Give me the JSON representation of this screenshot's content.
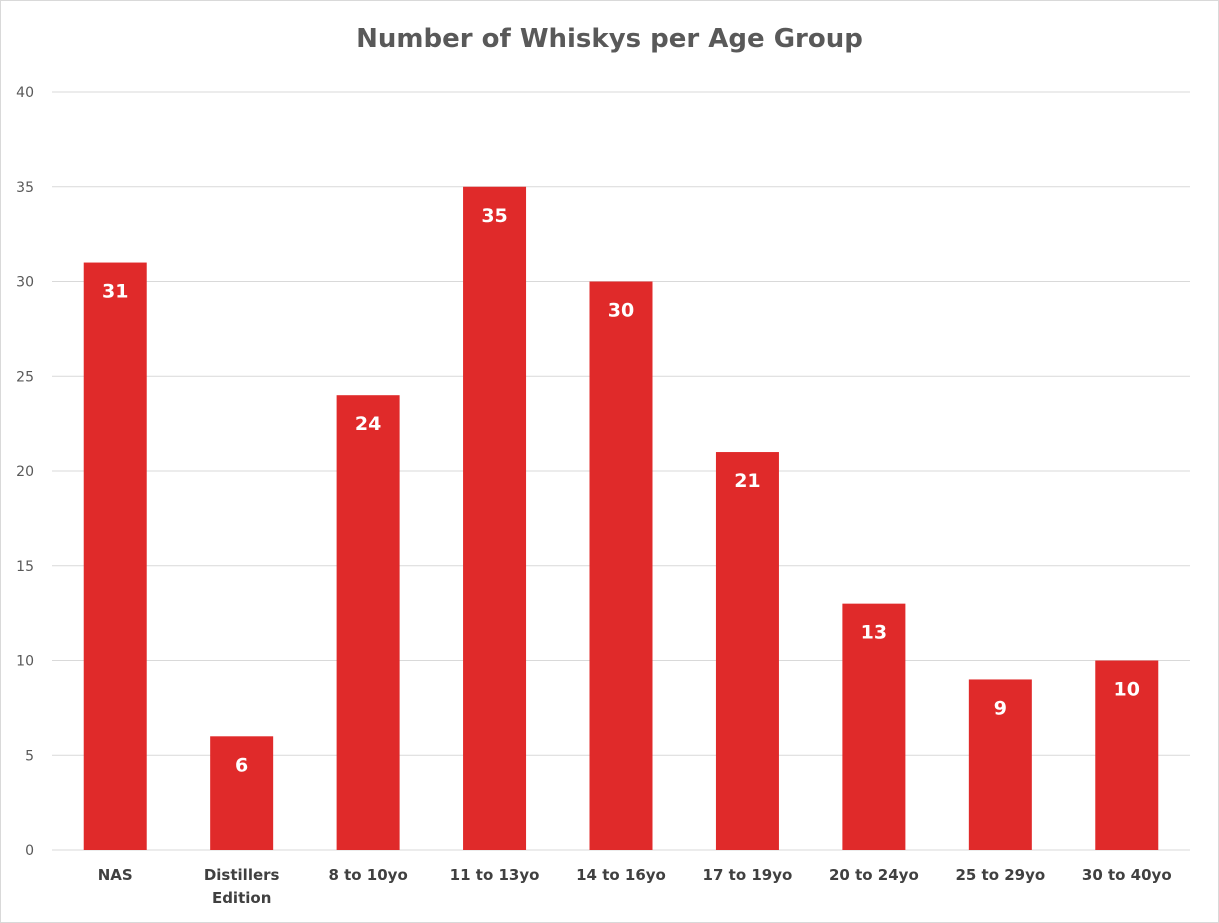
{
  "chart_data": {
    "type": "bar",
    "title": "Number of Whiskys per Age Group",
    "xlabel": "",
    "ylabel": "",
    "categories": [
      [
        "NAS"
      ],
      [
        "Distillers",
        "Edition"
      ],
      [
        "8 to 10yo"
      ],
      [
        "11 to 13yo"
      ],
      [
        "14 to 16yo"
      ],
      [
        "17 to 19yo"
      ],
      [
        "20 to 24yo"
      ],
      [
        "25 to 29yo"
      ],
      [
        "30 to 40yo"
      ]
    ],
    "values": [
      31,
      6,
      24,
      35,
      30,
      21,
      13,
      9,
      10
    ],
    "data_labels": [
      "31",
      "6",
      "24",
      "35",
      "30",
      "21",
      "13",
      "9",
      "10"
    ],
    "ylim": [
      0,
      40
    ],
    "yticks": [
      0,
      5,
      10,
      15,
      20,
      25,
      30,
      35,
      40
    ],
    "grid": true,
    "legend": "none",
    "bar_color": "#e02a2a",
    "grid_color": "#d9d9d9"
  }
}
